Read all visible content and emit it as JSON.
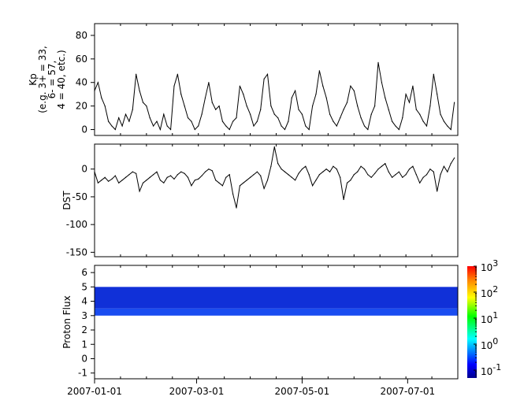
{
  "chart_data": [
    {
      "type": "line",
      "ylabel_lines": [
        "Kp",
        "(e.g. 3+ = 33,",
        "6- = 57,",
        "4 = 40, etc.)"
      ],
      "ylim": [
        -5,
        90
      ],
      "yticks": [
        0,
        20,
        40,
        60,
        80
      ],
      "x_start": "2007-01-01",
      "interval_days": 2,
      "values": [
        33,
        40,
        27,
        20,
        7,
        3,
        0,
        10,
        3,
        13,
        7,
        17,
        47,
        33,
        23,
        20,
        10,
        3,
        7,
        0,
        13,
        3,
        0,
        37,
        47,
        30,
        20,
        10,
        7,
        0,
        3,
        13,
        27,
        40,
        23,
        17,
        20,
        7,
        3,
        0,
        7,
        10,
        37,
        30,
        20,
        13,
        3,
        7,
        17,
        43,
        47,
        20,
        13,
        10,
        3,
        0,
        7,
        27,
        33,
        17,
        13,
        3,
        0,
        20,
        30,
        50,
        37,
        27,
        13,
        7,
        3,
        10,
        17,
        23,
        37,
        33,
        20,
        10,
        3,
        0,
        13,
        20,
        57,
        40,
        27,
        17,
        7,
        3,
        0,
        10,
        30,
        23,
        37,
        17,
        13,
        7,
        3,
        20,
        47,
        30,
        13,
        7,
        3,
        0,
        23
      ]
    },
    {
      "type": "line",
      "ylabel_lines": [
        "DST"
      ],
      "ylim": [
        -158,
        45
      ],
      "yticks": [
        0,
        -50,
        -100,
        -150
      ],
      "x_start": "2007-01-01",
      "interval_days": 2,
      "values": [
        -5,
        -25,
        -20,
        -15,
        -22,
        -18,
        -12,
        -25,
        -20,
        -15,
        -10,
        -5,
        -8,
        -40,
        -25,
        -20,
        -15,
        -10,
        -5,
        -20,
        -25,
        -15,
        -12,
        -18,
        -10,
        -5,
        -8,
        -15,
        -30,
        -20,
        -18,
        -12,
        -5,
        0,
        -3,
        -20,
        -25,
        -30,
        -15,
        -10,
        -45,
        -70,
        -30,
        -25,
        -20,
        -15,
        -10,
        -5,
        -12,
        -35,
        -20,
        5,
        40,
        10,
        0,
        -5,
        -10,
        -15,
        -20,
        -8,
        0,
        5,
        -10,
        -30,
        -20,
        -10,
        -5,
        0,
        -5,
        5,
        0,
        -15,
        -55,
        -25,
        -20,
        -10,
        -5,
        5,
        0,
        -10,
        -15,
        -8,
        0,
        5,
        10,
        -5,
        -15,
        -10,
        -5,
        -15,
        -10,
        0,
        5,
        -10,
        -25,
        -15,
        -10,
        0,
        -5,
        -40,
        -10,
        5,
        -5,
        10,
        20
      ]
    },
    {
      "type": "heatmap",
      "ylabel_lines": [
        "Proton Flux"
      ],
      "ylim": [
        -1.4,
        6.5
      ],
      "yticks": [
        -1,
        0,
        1,
        2,
        3,
        4,
        5,
        6
      ],
      "y_bins": [
        [
          3,
          3.5
        ],
        [
          3.5,
          5
        ]
      ],
      "bin_values": [
        0.2,
        0.1
      ],
      "colorbar": {
        "scale": "log",
        "range": [
          0.05,
          1000
        ],
        "tick_labels": [
          [
            "10",
            "-1"
          ],
          [
            "10",
            "0"
          ],
          [
            "10",
            "1"
          ],
          [
            "10",
            "2"
          ],
          [
            "10",
            "3"
          ]
        ],
        "tick_values": [
          0.1,
          1,
          10,
          100,
          1000
        ]
      }
    }
  ],
  "x_axis": {
    "start": "2007-01-01",
    "end": "2007-07-30",
    "tick_labels": [
      "2007-01-01",
      "2007-03-01",
      "2007-05-01",
      "2007-07-01"
    ],
    "tick_days": [
      0,
      59,
      120,
      181
    ]
  }
}
